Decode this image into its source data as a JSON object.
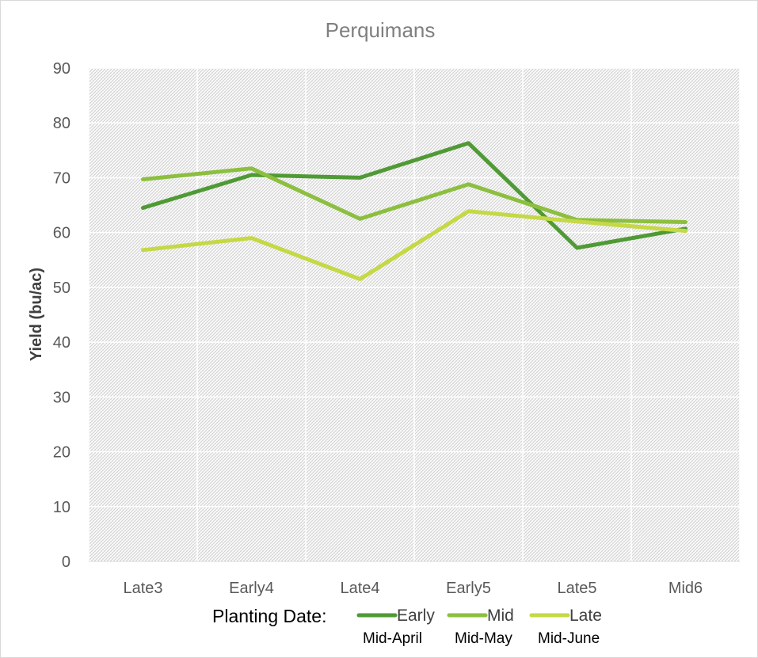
{
  "chart_data": {
    "type": "line",
    "title": "Perquimans",
    "xlabel": "",
    "ylabel": "Yield (bu/ac)",
    "ylim": [
      0,
      90
    ],
    "yticks": [
      0,
      10,
      20,
      30,
      40,
      50,
      60,
      70,
      80,
      90
    ],
    "categories": [
      "Late3",
      "Early4",
      "Late4",
      "Early5",
      "Late5",
      "Mid6"
    ],
    "grid": true,
    "legend_position": "bottom",
    "legend_title": "Planting Date:",
    "series": [
      {
        "name": "Early",
        "sublabel": "Mid-April",
        "color": "#4f9a35",
        "values": [
          64.5,
          70.5,
          70.0,
          76.3,
          57.2,
          60.7
        ]
      },
      {
        "name": "Mid",
        "sublabel": "Mid-May",
        "color": "#8cbf3f",
        "values": [
          69.7,
          71.7,
          62.5,
          68.8,
          62.3,
          61.9
        ]
      },
      {
        "name": "Late",
        "sublabel": "Mid-June",
        "color": "#c5d845",
        "values": [
          56.8,
          59.0,
          51.5,
          63.9,
          62.0,
          60.3
        ]
      }
    ]
  }
}
